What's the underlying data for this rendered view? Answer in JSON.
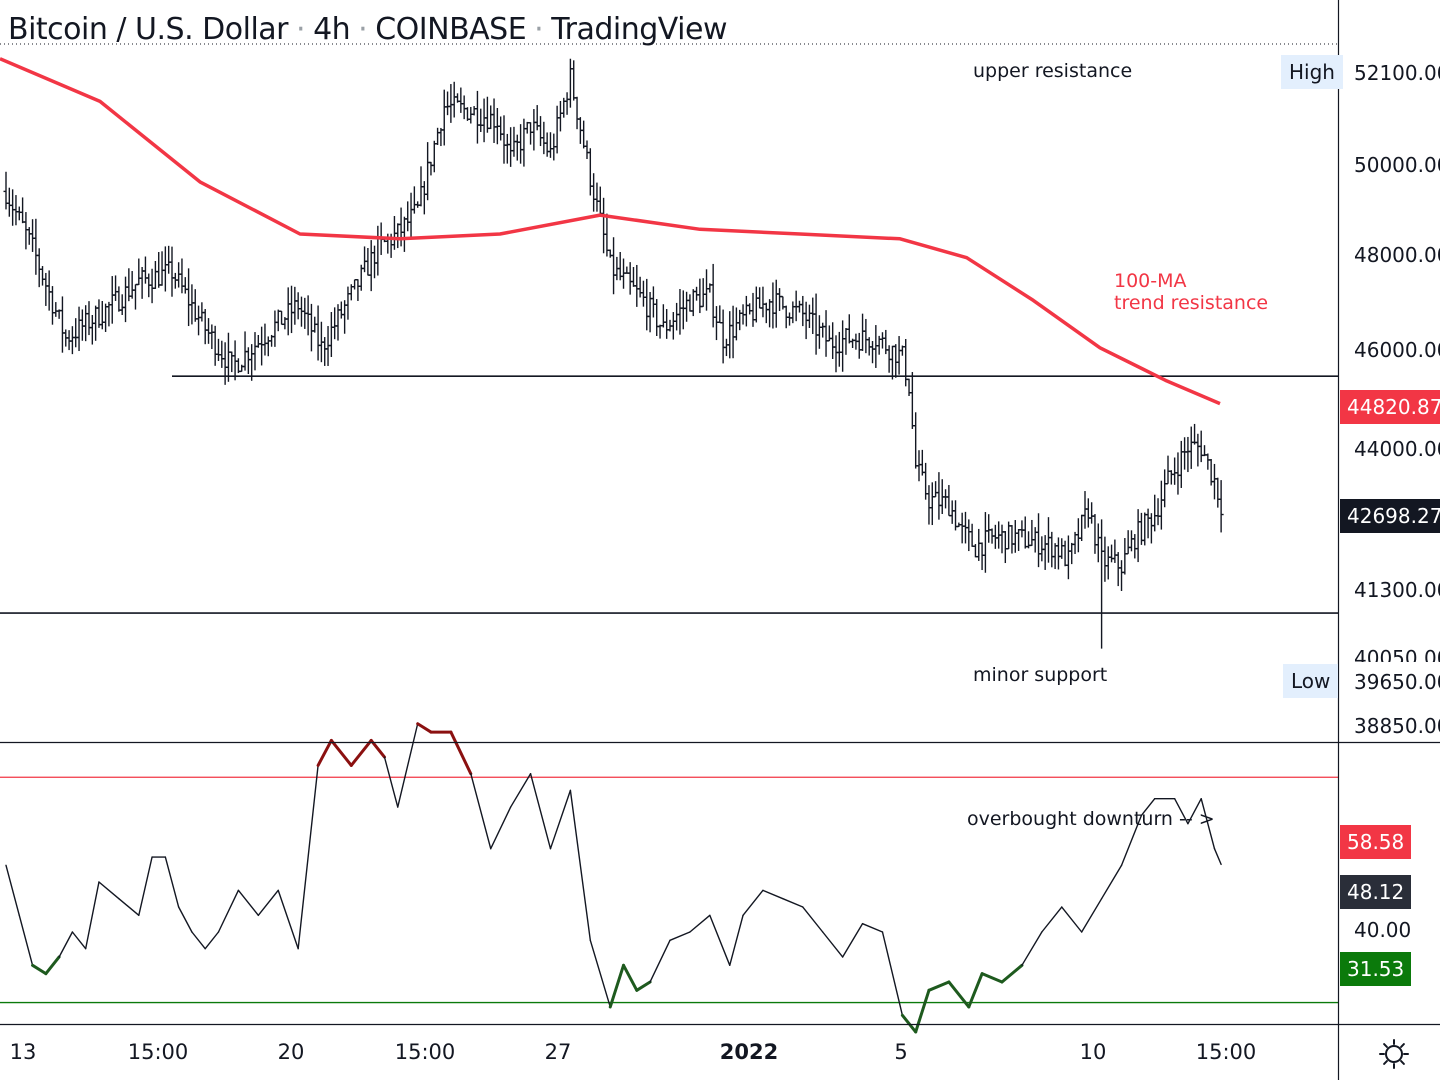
{
  "header": {
    "symbol": "Bitcoin / U.S. Dollar",
    "interval": "4h",
    "exchange": "COINBASE",
    "platform": "TradingView"
  },
  "annotations": {
    "upper_resistance": "upper resistance",
    "ma_label_1": "100-MA",
    "ma_label_2": "trend resistance",
    "minor_support": "minor support",
    "overbought": "overbought downturn -- >"
  },
  "price_axis": {
    "ticks": [
      "52100.00",
      "50000.00",
      "48000.00",
      "46000.00",
      "44000.00",
      "41300.00",
      "40050.00",
      "38850.00"
    ],
    "high_label": "High",
    "high_value": "52100.00",
    "low_label": "Low",
    "low_value": "39650.00",
    "ma_value": "44820.87",
    "last_price": "42698.27"
  },
  "rsi_axis": {
    "upper_value": "58.58",
    "current_value": "48.12",
    "tick": "40.00",
    "lower_value": "31.53"
  },
  "time_axis": {
    "labels": [
      "13",
      "15:00",
      "20",
      "15:00",
      "27",
      "2022",
      "5",
      "10",
      "15:00"
    ]
  },
  "icons": {
    "settings": "gear-icon"
  },
  "colors": {
    "ma_line": "#f23645",
    "ma_tag": "#f23645",
    "last_price_tag": "#131722",
    "rsi_upper": "#f23645",
    "rsi_lower": "#0b7a0b",
    "overbought_segment": "#8b1010",
    "oversold_segment": "#1e5a1e",
    "bars": "#131722"
  },
  "chart_data": [
    {
      "type": "ohlc",
      "title": "Bitcoin / U.S. Dollar · 4h · COINBASE · TradingView",
      "ylim": [
        38850,
        52400
      ],
      "x_range": [
        "2021-12-13",
        "2022-01-14 15:00"
      ],
      "x_ticks": [
        "13",
        "15:00",
        "20",
        "15:00",
        "27",
        "2022",
        "5",
        "10",
        "15:00"
      ],
      "close_path": [
        [
          0,
          49300
        ],
        [
          8,
          48100
        ],
        [
          18,
          46200
        ],
        [
          30,
          46800
        ],
        [
          40,
          47400
        ],
        [
          50,
          47600
        ],
        [
          60,
          46400
        ],
        [
          68,
          45600
        ],
        [
          80,
          46400
        ],
        [
          88,
          46900
        ],
        [
          95,
          46000
        ],
        [
          104,
          47100
        ],
        [
          112,
          48100
        ],
        [
          118,
          48400
        ],
        [
          124,
          48900
        ],
        [
          132,
          51100
        ],
        [
          140,
          51000
        ],
        [
          148,
          50800
        ],
        [
          152,
          50000
        ],
        [
          158,
          50700
        ],
        [
          164,
          50100
        ],
        [
          170,
          51700
        ],
        [
          176,
          49600
        ],
        [
          182,
          47700
        ],
        [
          192,
          47000
        ],
        [
          198,
          46400
        ],
        [
          206,
          47000
        ],
        [
          212,
          47100
        ],
        [
          216,
          46200
        ],
        [
          222,
          46600
        ],
        [
          230,
          47000
        ],
        [
          240,
          46700
        ],
        [
          248,
          46100
        ],
        [
          254,
          46200
        ],
        [
          262,
          46200
        ],
        [
          270,
          45800
        ],
        [
          272,
          45200
        ],
        [
          274,
          43500
        ],
        [
          278,
          42800
        ],
        [
          284,
          42700
        ],
        [
          288,
          42100
        ],
        [
          292,
          41800
        ],
        [
          298,
          42000
        ],
        [
          304,
          42000
        ],
        [
          310,
          41900
        ],
        [
          316,
          41800
        ],
        [
          320,
          41500
        ],
        [
          326,
          42600
        ],
        [
          330,
          41500
        ],
        [
          336,
          41400
        ],
        [
          340,
          42000
        ],
        [
          346,
          42500
        ],
        [
          350,
          43200
        ],
        [
          356,
          43900
        ],
        [
          360,
          43900
        ],
        [
          364,
          43200
        ],
        [
          366,
          42700
        ]
      ],
      "series": [
        {
          "name": "100-MA",
          "values": [
            [
              0,
              52100
            ],
            [
              30,
              51200
            ],
            [
              60,
              49500
            ],
            [
              90,
              48400
            ],
            [
              120,
              48300
            ],
            [
              150,
              48400
            ],
            [
              180,
              48800
            ],
            [
              210,
              48500
            ],
            [
              240,
              48400
            ],
            [
              270,
              48300
            ],
            [
              290,
              47900
            ],
            [
              310,
              47000
            ],
            [
              330,
              46000
            ],
            [
              350,
              45300
            ],
            [
              366,
              44820.87
            ]
          ]
        }
      ],
      "levels": {
        "range_support": 45400,
        "minor_support": 40400,
        "high": 52100,
        "low": 39650,
        "last": 42698.27
      }
    },
    {
      "type": "line",
      "ylim": [
        20,
        76
      ],
      "levels": {
        "upper": 58.58,
        "current": 48.12,
        "lower": 31.53
      },
      "values": [
        [
          0,
          48
        ],
        [
          4,
          42
        ],
        [
          8,
          36
        ],
        [
          12,
          35
        ],
        [
          16,
          37
        ],
        [
          20,
          40
        ],
        [
          24,
          38
        ],
        [
          28,
          46
        ],
        [
          34,
          44
        ],
        [
          40,
          42
        ],
        [
          44,
          49
        ],
        [
          48,
          49
        ],
        [
          52,
          43
        ],
        [
          56,
          40
        ],
        [
          60,
          38
        ],
        [
          64,
          40
        ],
        [
          70,
          45
        ],
        [
          76,
          42
        ],
        [
          82,
          45
        ],
        [
          88,
          38
        ],
        [
          94,
          60
        ],
        [
          98,
          63
        ],
        [
          104,
          60
        ],
        [
          110,
          63
        ],
        [
          114,
          61
        ],
        [
          118,
          55
        ],
        [
          124,
          65
        ],
        [
          128,
          64
        ],
        [
          134,
          64
        ],
        [
          140,
          59
        ],
        [
          146,
          50
        ],
        [
          152,
          55
        ],
        [
          158,
          59
        ],
        [
          164,
          50
        ],
        [
          170,
          57
        ],
        [
          176,
          39
        ],
        [
          182,
          31
        ],
        [
          186,
          36
        ],
        [
          190,
          33
        ],
        [
          194,
          34
        ],
        [
          200,
          39
        ],
        [
          206,
          40
        ],
        [
          212,
          42
        ],
        [
          218,
          36
        ],
        [
          222,
          42
        ],
        [
          228,
          45
        ],
        [
          234,
          44
        ],
        [
          240,
          43
        ],
        [
          246,
          40
        ],
        [
          252,
          37
        ],
        [
          258,
          41
        ],
        [
          264,
          40
        ],
        [
          270,
          30
        ],
        [
          274,
          28
        ],
        [
          278,
          33
        ],
        [
          284,
          34
        ],
        [
          290,
          31
        ],
        [
          294,
          35
        ],
        [
          300,
          34
        ],
        [
          306,
          36
        ],
        [
          312,
          40
        ],
        [
          318,
          43
        ],
        [
          324,
          40
        ],
        [
          330,
          44
        ],
        [
          336,
          48
        ],
        [
          342,
          54
        ],
        [
          346,
          56
        ],
        [
          352,
          56
        ],
        [
          356,
          53
        ],
        [
          360,
          56
        ],
        [
          364,
          50
        ],
        [
          366,
          48.12
        ]
      ]
    }
  ]
}
